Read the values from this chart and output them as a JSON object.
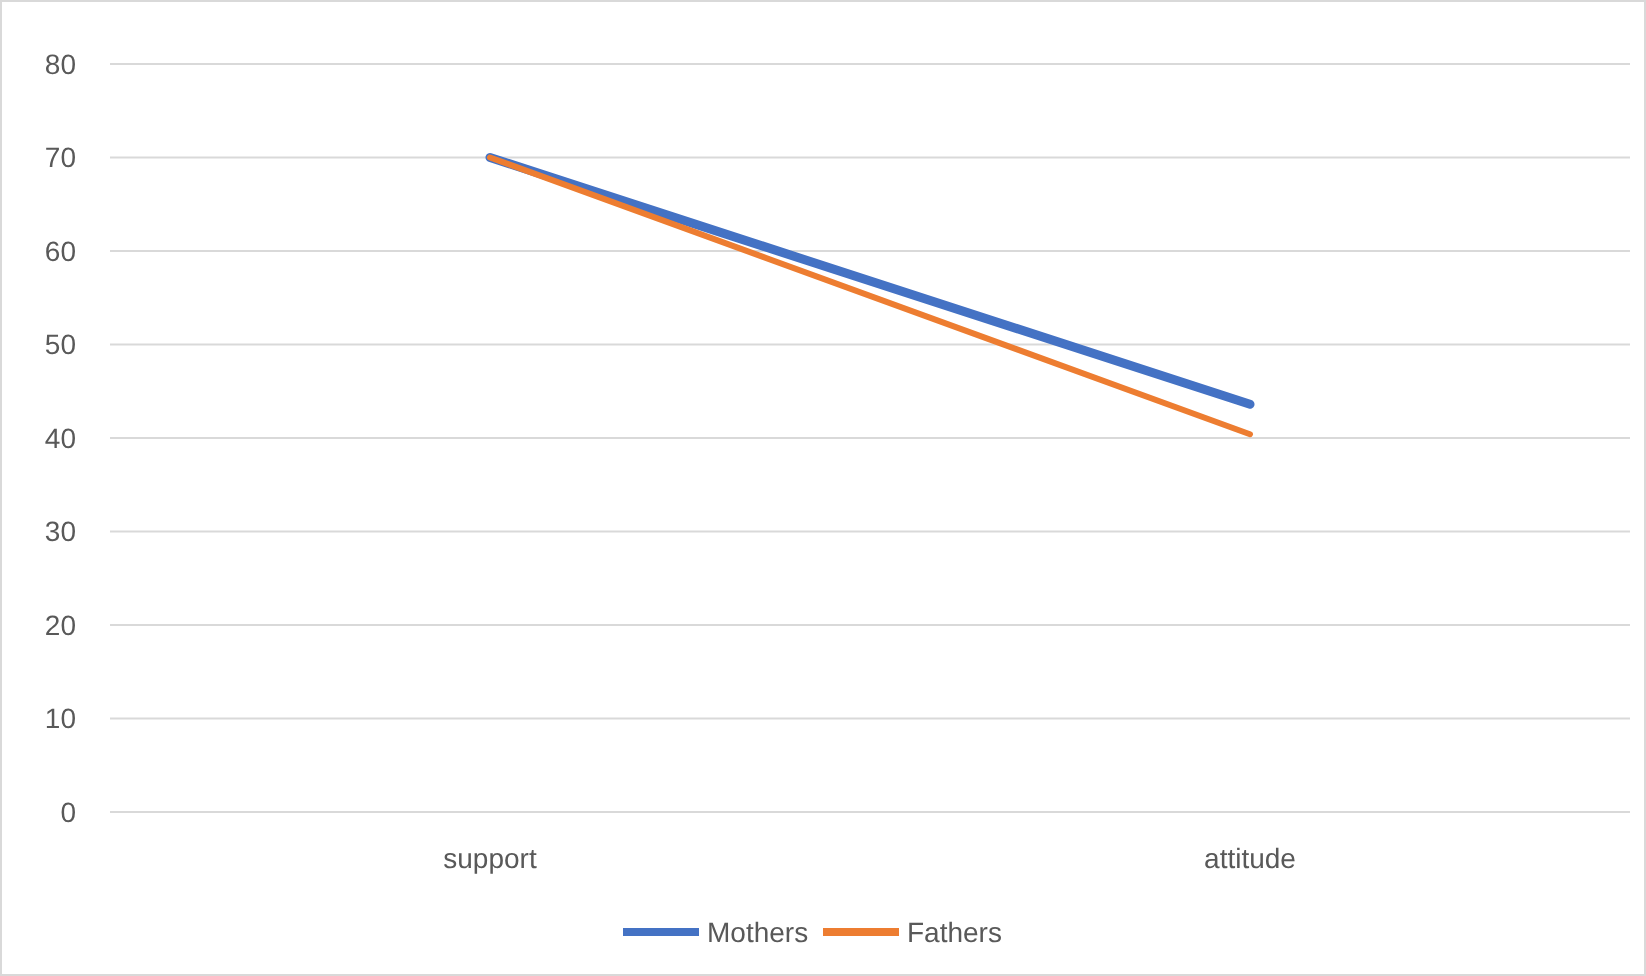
{
  "chart_data": {
    "type": "line",
    "categories": [
      "support",
      "attitude"
    ],
    "series": [
      {
        "name": "Mothers",
        "color": "#4472c4",
        "values": [
          70,
          43.6
        ]
      },
      {
        "name": "Fathers",
        "color": "#ed7d31",
        "values": [
          70,
          40.4
        ]
      }
    ],
    "ylim": [
      0,
      80
    ],
    "yticks": [
      0,
      10,
      20,
      30,
      40,
      50,
      60,
      70,
      80
    ],
    "grid": "y",
    "legend": "bottom",
    "marker": "none",
    "line_style": "solid"
  }
}
